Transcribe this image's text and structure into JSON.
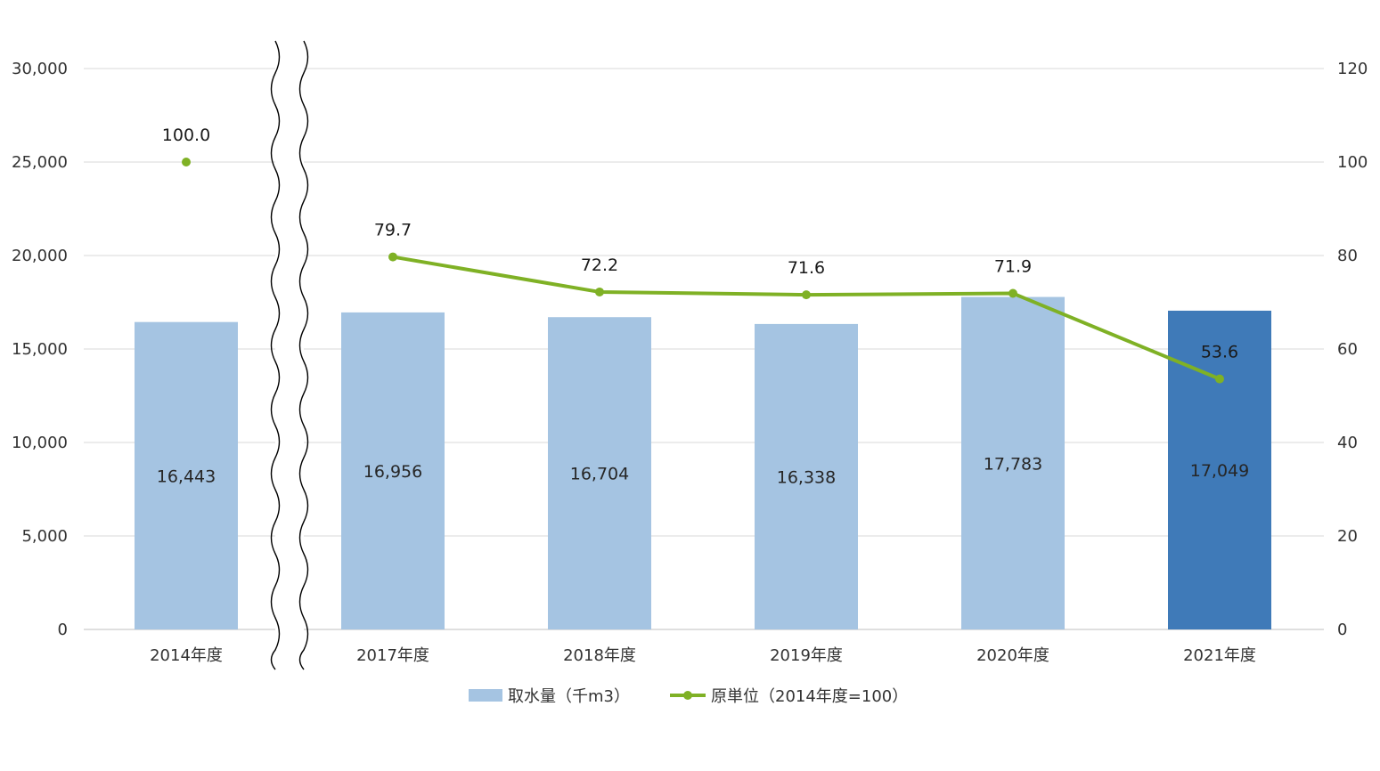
{
  "chart_data": {
    "type": "bar+line",
    "categories": [
      "2014年度",
      "2017年度",
      "2018年度",
      "2019年度",
      "2020年度",
      "2021年度"
    ],
    "axis_break_after_index": 0,
    "series": [
      {
        "name": "取水量（千m3）",
        "type": "bar",
        "axis": "left",
        "values": [
          16443,
          16956,
          16704,
          16338,
          17783,
          17049
        ],
        "labels": [
          "16,443",
          "16,956",
          "16,704",
          "16,338",
          "17,783",
          "17,049"
        ],
        "color": "#a5c4e2",
        "highlight_index": 5,
        "highlight_color": "#3f7ab8"
      },
      {
        "name": "原単位（2014年度=100）",
        "type": "line",
        "axis": "right",
        "values": [
          100.0,
          79.7,
          72.2,
          71.6,
          71.9,
          53.6
        ],
        "labels": [
          "100.0",
          "79.7",
          "72.2",
          "71.6",
          "71.9",
          "53.6"
        ],
        "color": "#7fb125"
      }
    ],
    "left_axis": {
      "min": 0,
      "max": 30000,
      "ticks": [
        "0",
        "5,000",
        "10,000",
        "15,000",
        "20,000",
        "25,000",
        "30,000"
      ]
    },
    "right_axis": {
      "min": 0,
      "max": 120,
      "ticks": [
        "0",
        "20",
        "40",
        "60",
        "80",
        "100",
        "120"
      ]
    },
    "grid": true,
    "legend_position": "bottom"
  }
}
